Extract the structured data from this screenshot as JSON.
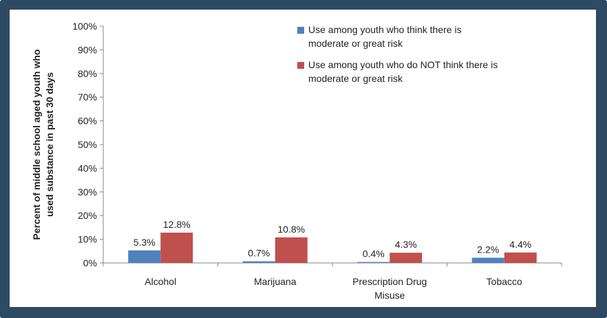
{
  "colors": {
    "frame": "#2e4a62",
    "series_1": "#4f81bd",
    "series_2": "#c0504d",
    "axis": "#868686"
  },
  "chart_data": {
    "type": "bar",
    "ylabel": "Percent of middle school aged youth who used substance in past 30 days",
    "ylabel_lines": [
      "Percent of middle school aged youth who",
      "used substance  in past 30 days"
    ],
    "ylim": [
      0,
      100
    ],
    "y_ticks": [
      {
        "value": 0,
        "label": "0%"
      },
      {
        "value": 10,
        "label": "10%"
      },
      {
        "value": 20,
        "label": "20%"
      },
      {
        "value": 30,
        "label": "30%"
      },
      {
        "value": 40,
        "label": "40%"
      },
      {
        "value": 50,
        "label": "50%"
      },
      {
        "value": 60,
        "label": "60%"
      },
      {
        "value": 70,
        "label": "70%"
      },
      {
        "value": 80,
        "label": "80%"
      },
      {
        "value": 90,
        "label": "90%"
      },
      {
        "value": 100,
        "label": "100%"
      }
    ],
    "categories": [
      "Alcohol",
      "Marijuana",
      "Prescription Drug Misuse",
      "Tobacco"
    ],
    "category_lines": [
      [
        "Alcohol"
      ],
      [
        "Marijuana"
      ],
      [
        "Prescription Drug",
        "Misuse"
      ],
      [
        "Tobacco"
      ]
    ],
    "series": [
      {
        "name": "Use  among youth who think there is moderate or great risk",
        "legend_lines": [
          "Use  among youth who think there is",
          "moderate or great risk"
        ],
        "values": [
          5.3,
          0.7,
          0.4,
          2.2
        ],
        "labels": [
          "5.3%",
          "0.7%",
          "0.4%",
          "2.2%"
        ]
      },
      {
        "name": "Use  among youth who do NOT think there is moderate or great risk",
        "legend_lines": [
          "Use  among youth who do NOT think there is",
          "moderate or great risk"
        ],
        "values": [
          12.8,
          10.8,
          4.3,
          4.4
        ],
        "labels": [
          "12.8%",
          "10.8%",
          "4.3%",
          "4.4%"
        ]
      }
    ],
    "grid": false,
    "legend_position": "top-right"
  }
}
